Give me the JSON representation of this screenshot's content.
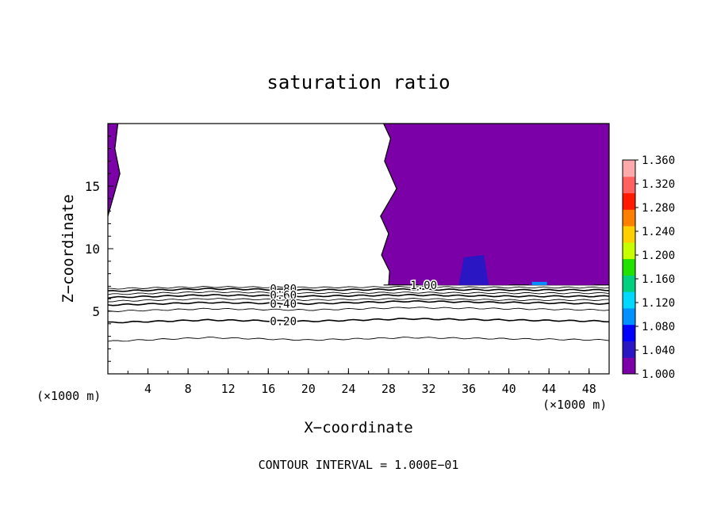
{
  "chart_data": {
    "type": "contour",
    "title": "saturation ratio",
    "xlabel": "X−coordinate",
    "ylabel": "Z−coordinate",
    "x_unit_left": "(×1000 m)",
    "x_unit_right": "(×1000 m)",
    "xlim": [
      0,
      50
    ],
    "ylim": [
      0,
      20
    ],
    "x_ticks": [
      4,
      8,
      12,
      16,
      20,
      24,
      28,
      32,
      36,
      40,
      44,
      48
    ],
    "x_tick_labels": [
      "4",
      "8",
      "12",
      "16",
      "20",
      "24",
      "28",
      "32",
      "36",
      "40",
      "44",
      "48"
    ],
    "y_ticks": [
      5,
      10,
      15
    ],
    "y_tick_labels": [
      "5",
      "10",
      "15"
    ],
    "contour_interval_text": "CONTOUR INTERVAL = 1.000E−01",
    "contour_lines": [
      {
        "level": 0.1,
        "z": [
          2.6,
          2.9,
          2.7,
          2.9,
          2.8,
          2.7
        ]
      },
      {
        "level": 0.2,
        "z": [
          4.1,
          4.3,
          4.2,
          4.4,
          4.3,
          4.2
        ]
      },
      {
        "level": 0.3,
        "z": [
          5.0,
          5.2,
          5.1,
          5.3,
          5.2,
          5.1
        ]
      },
      {
        "level": 0.4,
        "z": [
          5.5,
          5.7,
          5.6,
          5.8,
          5.7,
          5.6
        ]
      },
      {
        "level": 0.5,
        "z": [
          5.8,
          6.0,
          5.9,
          6.0,
          5.9,
          5.9
        ]
      },
      {
        "level": 0.6,
        "z": [
          6.1,
          6.3,
          6.2,
          6.3,
          6.2,
          6.2
        ]
      },
      {
        "level": 0.7,
        "z": [
          6.35,
          6.55,
          6.45,
          6.5,
          6.45,
          6.45
        ]
      },
      {
        "level": 0.8,
        "z": [
          6.6,
          6.8,
          6.7,
          6.75,
          6.7,
          6.7
        ]
      },
      {
        "level": 0.9,
        "z": [
          6.8,
          6.95,
          6.9,
          6.95,
          6.9,
          6.9
        ]
      }
    ],
    "contour_x": [
      0,
      10,
      20,
      30,
      40,
      50
    ],
    "contour_labels": [
      {
        "text": "0.80",
        "x": 17.5,
        "z": 6.8
      },
      {
        "text": "0.60",
        "x": 17.5,
        "z": 6.3
      },
      {
        "text": "0.40",
        "x": 17.5,
        "z": 5.6
      },
      {
        "text": "0.20",
        "x": 17.5,
        "z": 4.2
      },
      {
        "text": "1.00",
        "x": 31.5,
        "z": 7.1
      }
    ],
    "supersaturated_regions": [
      {
        "name": "left-edge",
        "x": [
          0,
          1.0,
          0.7,
          1.2,
          0.5,
          0,
          0
        ],
        "z": [
          20,
          20,
          18,
          16,
          14,
          12.6,
          20
        ],
        "value": 1.0
      },
      {
        "name": "right-block",
        "x": [
          27.5,
          50,
          50,
          27.5,
          28.2,
          27.6,
          28.8,
          27.2,
          28.0,
          27.3,
          28.1,
          28.0
        ],
        "z": [
          7.1,
          7.1,
          20,
          20,
          18.8,
          17.0,
          14.8,
          12.6,
          11.2,
          9.5,
          8.2,
          7.1
        ],
        "value": 1.0
      },
      {
        "name": "core-1",
        "x": [
          31,
          40,
          40.5,
          37,
          32
        ],
        "z": [
          7.1,
          7.1,
          11.5,
          13,
          10
        ],
        "value": 1.01
      },
      {
        "name": "core-2",
        "x": [
          35,
          38,
          37.5,
          35.5
        ],
        "z": [
          7.1,
          7.1,
          9.5,
          9.3
        ],
        "value": 1.03
      },
      {
        "name": "core-3",
        "x": [
          42,
          48.5,
          48,
          43.5
        ],
        "z": [
          7.1,
          7.1,
          15,
          14
        ],
        "value": 1.01
      },
      {
        "name": "cyan-spot",
        "x": [
          42.3,
          43.8,
          43.8,
          42.3
        ],
        "z": [
          7.1,
          7.1,
          7.35,
          7.35
        ],
        "value": 1.1
      }
    ],
    "colorbar": {
      "min": 1.0,
      "max": 1.36,
      "labels": [
        "1.360",
        "1.320",
        "1.280",
        "1.240",
        "1.200",
        "1.160",
        "1.120",
        "1.080",
        "1.040",
        "1.000"
      ],
      "colors": [
        "#7b00a8",
        "#2a16c2",
        "#0000ff",
        "#0090ff",
        "#00d8ff",
        "#00d080",
        "#22e000",
        "#c8ff00",
        "#ffd000",
        "#ff8000",
        "#ff1a00",
        "#ff6060",
        "#ffaaaa"
      ]
    },
    "grid": false
  }
}
